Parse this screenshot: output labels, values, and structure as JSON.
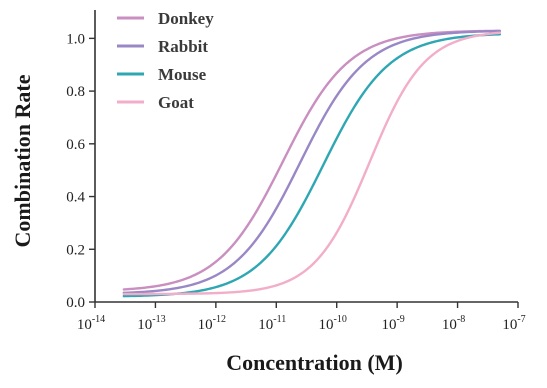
{
  "chart_data": {
    "type": "line",
    "title": "",
    "xlabel": "Concentration (M)",
    "ylabel": "Combination Rate",
    "x_scale": "log",
    "xlim": [
      1e-14,
      1e-07
    ],
    "ylim": [
      0,
      1.1
    ],
    "x_ticks": [
      {
        "base": "10",
        "exp": "-14"
      },
      {
        "base": "10",
        "exp": "-13"
      },
      {
        "base": "10",
        "exp": "-12"
      },
      {
        "base": "10",
        "exp": "-11"
      },
      {
        "base": "10",
        "exp": "-10"
      },
      {
        "base": "10",
        "exp": "-9"
      },
      {
        "base": "10",
        "exp": "-8"
      },
      {
        "base": "10",
        "exp": "-7"
      }
    ],
    "y_ticks": [
      "0.0",
      "0.2",
      "0.4",
      "0.6",
      "0.8",
      "1.0"
    ],
    "grid": false,
    "legend_position": "top-left",
    "x_range": [
      3e-14,
      5e-08
    ],
    "series": [
      {
        "name": "Donkey",
        "color": "#c98fc0",
        "ec50": 1.3e-11,
        "hill": 0.8,
        "bottom": 0.04,
        "top": 1.03
      },
      {
        "name": "Rabbit",
        "color": "#9a88c6",
        "ec50": 2.5e-11,
        "hill": 0.8,
        "bottom": 0.03,
        "top": 1.03
      },
      {
        "name": "Mouse",
        "color": "#2ea7b3",
        "ec50": 6e-11,
        "hill": 0.8,
        "bottom": 0.02,
        "top": 1.02
      },
      {
        "name": "Goat",
        "color": "#f2aec8",
        "ec50": 3.5e-10,
        "hill": 0.95,
        "bottom": 0.03,
        "top": 1.03
      }
    ]
  }
}
